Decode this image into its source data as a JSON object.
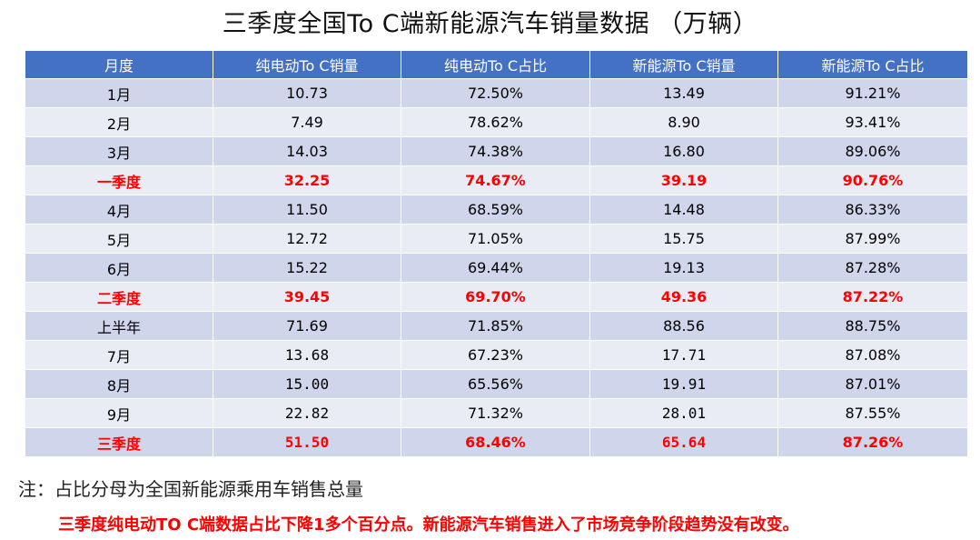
{
  "title": "三季度全国To C端新能源汽车销量数据 （万辆）",
  "headers": [
    "月度",
    "纯电动To C销量",
    "纯电动To C占比",
    "新能源To C销量",
    "新能源To C占比"
  ],
  "rows": [
    {
      "label": "1月",
      "ev_sales": "10.73",
      "ev_share": "72.50%",
      "nev_sales": "13.49",
      "nev_share": "91.21%",
      "highlight": false
    },
    {
      "label": "2月",
      "ev_sales": "7.49",
      "ev_share": "78.62%",
      "nev_sales": "8.90",
      "nev_share": "93.41%",
      "highlight": false
    },
    {
      "label": "3月",
      "ev_sales": "14.03",
      "ev_share": "74.38%",
      "nev_sales": "16.80",
      "nev_share": "89.06%",
      "highlight": false
    },
    {
      "label": "一季度",
      "ev_sales": "32.25",
      "ev_share": "74.67%",
      "nev_sales": "39.19",
      "nev_share": "90.76%",
      "highlight": true
    },
    {
      "label": "4月",
      "ev_sales": "11.50",
      "ev_share": "68.59%",
      "nev_sales": "14.48",
      "nev_share": "86.33%",
      "highlight": false
    },
    {
      "label": "5月",
      "ev_sales": "12.72",
      "ev_share": "71.05%",
      "nev_sales": "15.75",
      "nev_share": "87.99%",
      "highlight": false
    },
    {
      "label": "6月",
      "ev_sales": "15.22",
      "ev_share": "69.44%",
      "nev_sales": "19.13",
      "nev_share": "87.28%",
      "highlight": false
    },
    {
      "label": "二季度",
      "ev_sales": "39.45",
      "ev_share": "69.70%",
      "nev_sales": "49.36",
      "nev_share": "87.22%",
      "highlight": true
    },
    {
      "label": "上半年",
      "ev_sales": "71.69",
      "ev_share": "71.85%",
      "nev_sales": "88.56",
      "nev_share": "88.75%",
      "highlight": false
    },
    {
      "label": "7月",
      "ev_sales": "13.68",
      "ev_share": "67.23%",
      "nev_sales": "17.71",
      "nev_share": "87.08%",
      "highlight": false,
      "mono": true
    },
    {
      "label": "8月",
      "ev_sales": "15.00",
      "ev_share": "65.56%",
      "nev_sales": "19.91",
      "nev_share": "87.01%",
      "highlight": false,
      "mono": true
    },
    {
      "label": "9月",
      "ev_sales": "22.82",
      "ev_share": "71.32%",
      "nev_sales": "28.01",
      "nev_share": "87.55%",
      "highlight": false,
      "mono": true
    },
    {
      "label": "三季度",
      "ev_sales": "51.50",
      "ev_share": "68.46%",
      "nev_sales": "65.64",
      "nev_share": "87.26%",
      "highlight": true,
      "mono": true
    }
  ],
  "note": "注：占比分母为全国新能源乘用车销售总量",
  "remark": "三季度纯电动TO C端数据占比下降1多个百分点。新能源汽车销售进入了市场竞争阶段趋势没有改变。"
}
